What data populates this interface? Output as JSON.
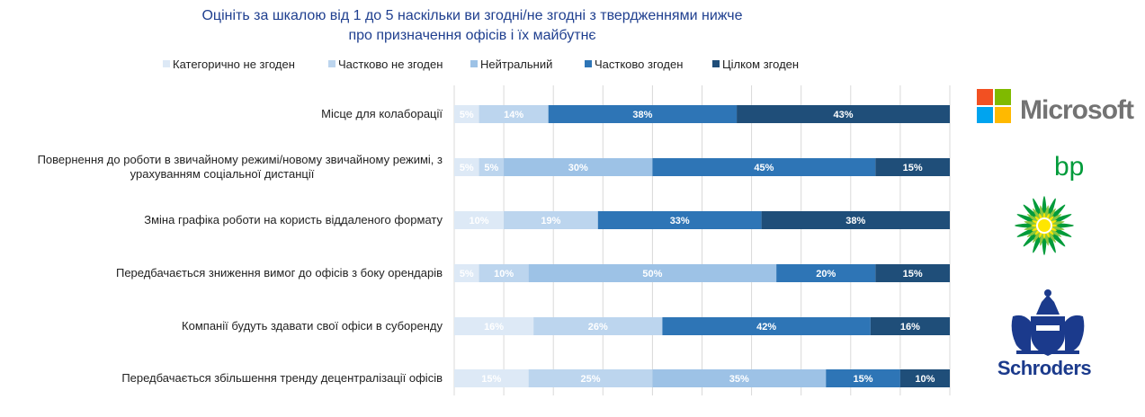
{
  "chart_data": {
    "type": "bar",
    "orientation": "horizontal-stacked-100",
    "title_lines": [
      "Оцініть за шкалою від 1 до 5 наскільки ви згодні/не згодні з твердженнями нижче",
      "про призначення офісів і їх майбутнє"
    ],
    "xlim": [
      0,
      100
    ],
    "grid": true,
    "legend_position": "top",
    "categories": [
      "Місце для колаборації",
      [
        "Повернення до роботи в звичайному режимі/новому звичайному режимі, з",
        "урахуванням соціальної дистанції"
      ],
      "Зміна графіка роботи на користь віддаленого формату",
      "Передбачається зниження вимог до офісів з боку орендарів",
      "Компанії будуть здавати свої офіси в суборенду",
      "Передбачається збільшення тренду децентралізації офісів"
    ],
    "series": [
      {
        "name": "Категорично не згоден",
        "color": "#dde9f6",
        "values": [
          5,
          5,
          10,
          5,
          16,
          15
        ],
        "labels": [
          "5%",
          "5%",
          "10%",
          "5%",
          "16%",
          "15%"
        ]
      },
      {
        "name": "Частково не згоден",
        "color": "#bcd5ee",
        "values": [
          14,
          5,
          19,
          10,
          26,
          25
        ],
        "labels": [
          "14%",
          "5%",
          "19%",
          "10%",
          "26%",
          "25%"
        ]
      },
      {
        "name": "Нейтральний",
        "color": "#9dc2e6",
        "values": [
          0,
          30,
          0,
          50,
          0,
          35
        ],
        "labels": [
          "",
          "30%",
          "",
          "50%",
          "",
          "35%"
        ]
      },
      {
        "name": "Частково згоден",
        "color": "#2e75b6",
        "values": [
          38,
          45,
          33,
          20,
          42,
          15
        ],
        "labels": [
          "38%",
          "45%",
          "33%",
          "20%",
          "42%",
          "15%"
        ]
      },
      {
        "name": "Цілком згоден",
        "color": "#1f4e79",
        "values": [
          43,
          15,
          38,
          15,
          16,
          10
        ],
        "labels": [
          "43%",
          "15%",
          "38%",
          "15%",
          "16%",
          "10%"
        ]
      }
    ]
  },
  "logos": {
    "microsoft": {
      "text": "Microsoft",
      "colors": [
        "#f25022",
        "#7fba00",
        "#00a4ef",
        "#ffb900"
      ],
      "text_color": "#737373"
    },
    "bp": {
      "text": "bp",
      "colors": [
        "#009b3a",
        "#8cc63f",
        "#ffe600"
      ]
    },
    "schroders": {
      "text": "Schroders",
      "color": "#1b3a8c"
    }
  }
}
